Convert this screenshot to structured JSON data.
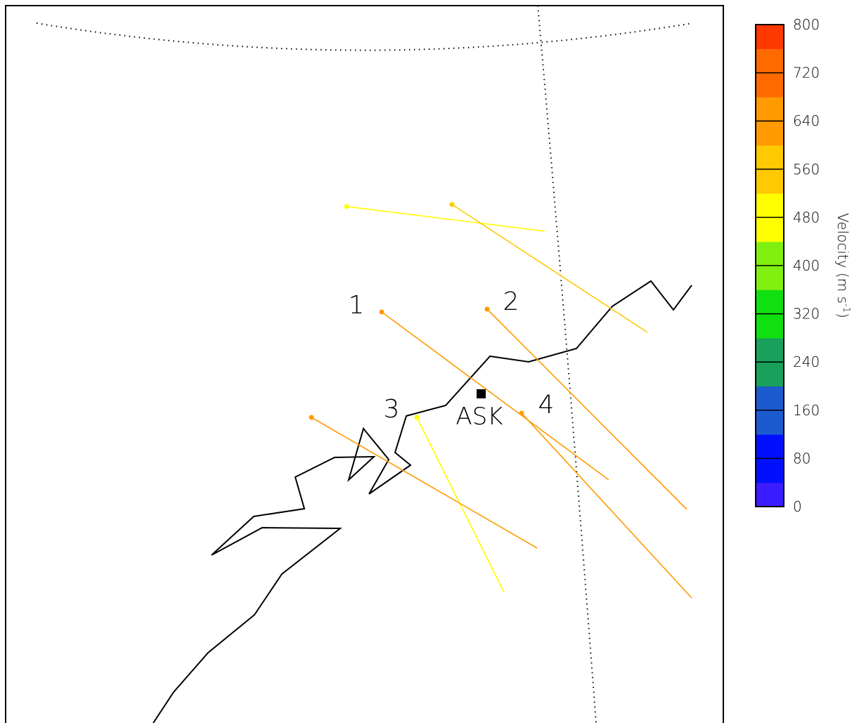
{
  "station": {
    "name": "ASK"
  },
  "vector_labels": [
    "1",
    "2",
    "3",
    "4"
  ],
  "colorbar": {
    "title": "Velocity (m s",
    "title_sup": "-1",
    "title_end": ")",
    "ticks": [
      "0",
      "80",
      "160",
      "240",
      "320",
      "400",
      "480",
      "560",
      "640",
      "720",
      "800"
    ],
    "min": 0,
    "max": 800,
    "colors": [
      "#3b1cff",
      "#0010ff",
      "#1c5ad0",
      "#19a05a",
      "#10e010",
      "#80f010",
      "#ffff00",
      "#ffc800",
      "#ff9a00",
      "#ff6a00",
      "#ff3800"
    ]
  },
  "vectors": [
    {
      "label": "",
      "velocity": 450
    },
    {
      "label": "",
      "velocity": 520
    },
    {
      "label": "1",
      "velocity": 640
    },
    {
      "label": "2",
      "velocity": 630
    },
    {
      "label": "3",
      "velocity": 460
    },
    {
      "label": "4",
      "velocity": 660
    },
    {
      "label": "",
      "velocity": 610
    }
  ]
}
